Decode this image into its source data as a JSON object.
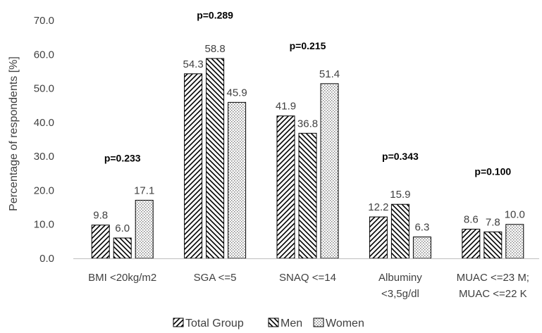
{
  "chart_data": {
    "type": "bar",
    "title": "",
    "xlabel": "",
    "ylabel": "Percentage of respondents [%]",
    "ylim": [
      0,
      70
    ],
    "ytick_step": 10,
    "yticks": [
      "0.0",
      "10.0",
      "20.0",
      "30.0",
      "40.0",
      "50.0",
      "60.0",
      "70.0"
    ],
    "grid": false,
    "legend_position": "bottom",
    "categories": [
      [
        "BMI <20kg/m2"
      ],
      [
        "SGA <=5"
      ],
      [
        "SNAQ  <=14"
      ],
      [
        "Albuminy",
        "<3,5g/dl"
      ],
      [
        "MUAC <=23 M;",
        "MUAC <=22 K"
      ]
    ],
    "series": [
      {
        "name": "Total Group",
        "pattern": "diag-up",
        "values": [
          9.8,
          54.3,
          41.9,
          12.2,
          8.6
        ],
        "labels": [
          "9.8",
          "54.3",
          "41.9",
          "12.2",
          "8.6"
        ]
      },
      {
        "name": "Men",
        "pattern": "diag-down",
        "values": [
          6.0,
          58.8,
          36.8,
          15.9,
          7.8
        ],
        "labels": [
          "6.0",
          "58.8",
          "36.8",
          "15.9",
          "7.8"
        ]
      },
      {
        "name": "Women",
        "pattern": "dots",
        "values": [
          17.1,
          45.9,
          51.4,
          6.3,
          10.0
        ],
        "labels": [
          "17.1",
          "45.9",
          "51.4",
          "6.3",
          "10.0"
        ]
      }
    ],
    "annotations": [
      {
        "category_index": 0,
        "text": "p=0.233",
        "y": 28.5
      },
      {
        "category_index": 1,
        "text": "p=0.289",
        "y": 70.5
      },
      {
        "category_index": 2,
        "text": "p=0.215",
        "y": 61.5
      },
      {
        "category_index": 3,
        "text": "p=0.343",
        "y": 29.0
      },
      {
        "category_index": 4,
        "text": "p=0.100",
        "y": 24.5
      }
    ],
    "colors": {
      "axis": "#bfbfbf",
      "text": "#404040",
      "bar_stroke": "#000000",
      "bar_fill": "#ffffff",
      "dots": "#7f7f7f"
    }
  }
}
